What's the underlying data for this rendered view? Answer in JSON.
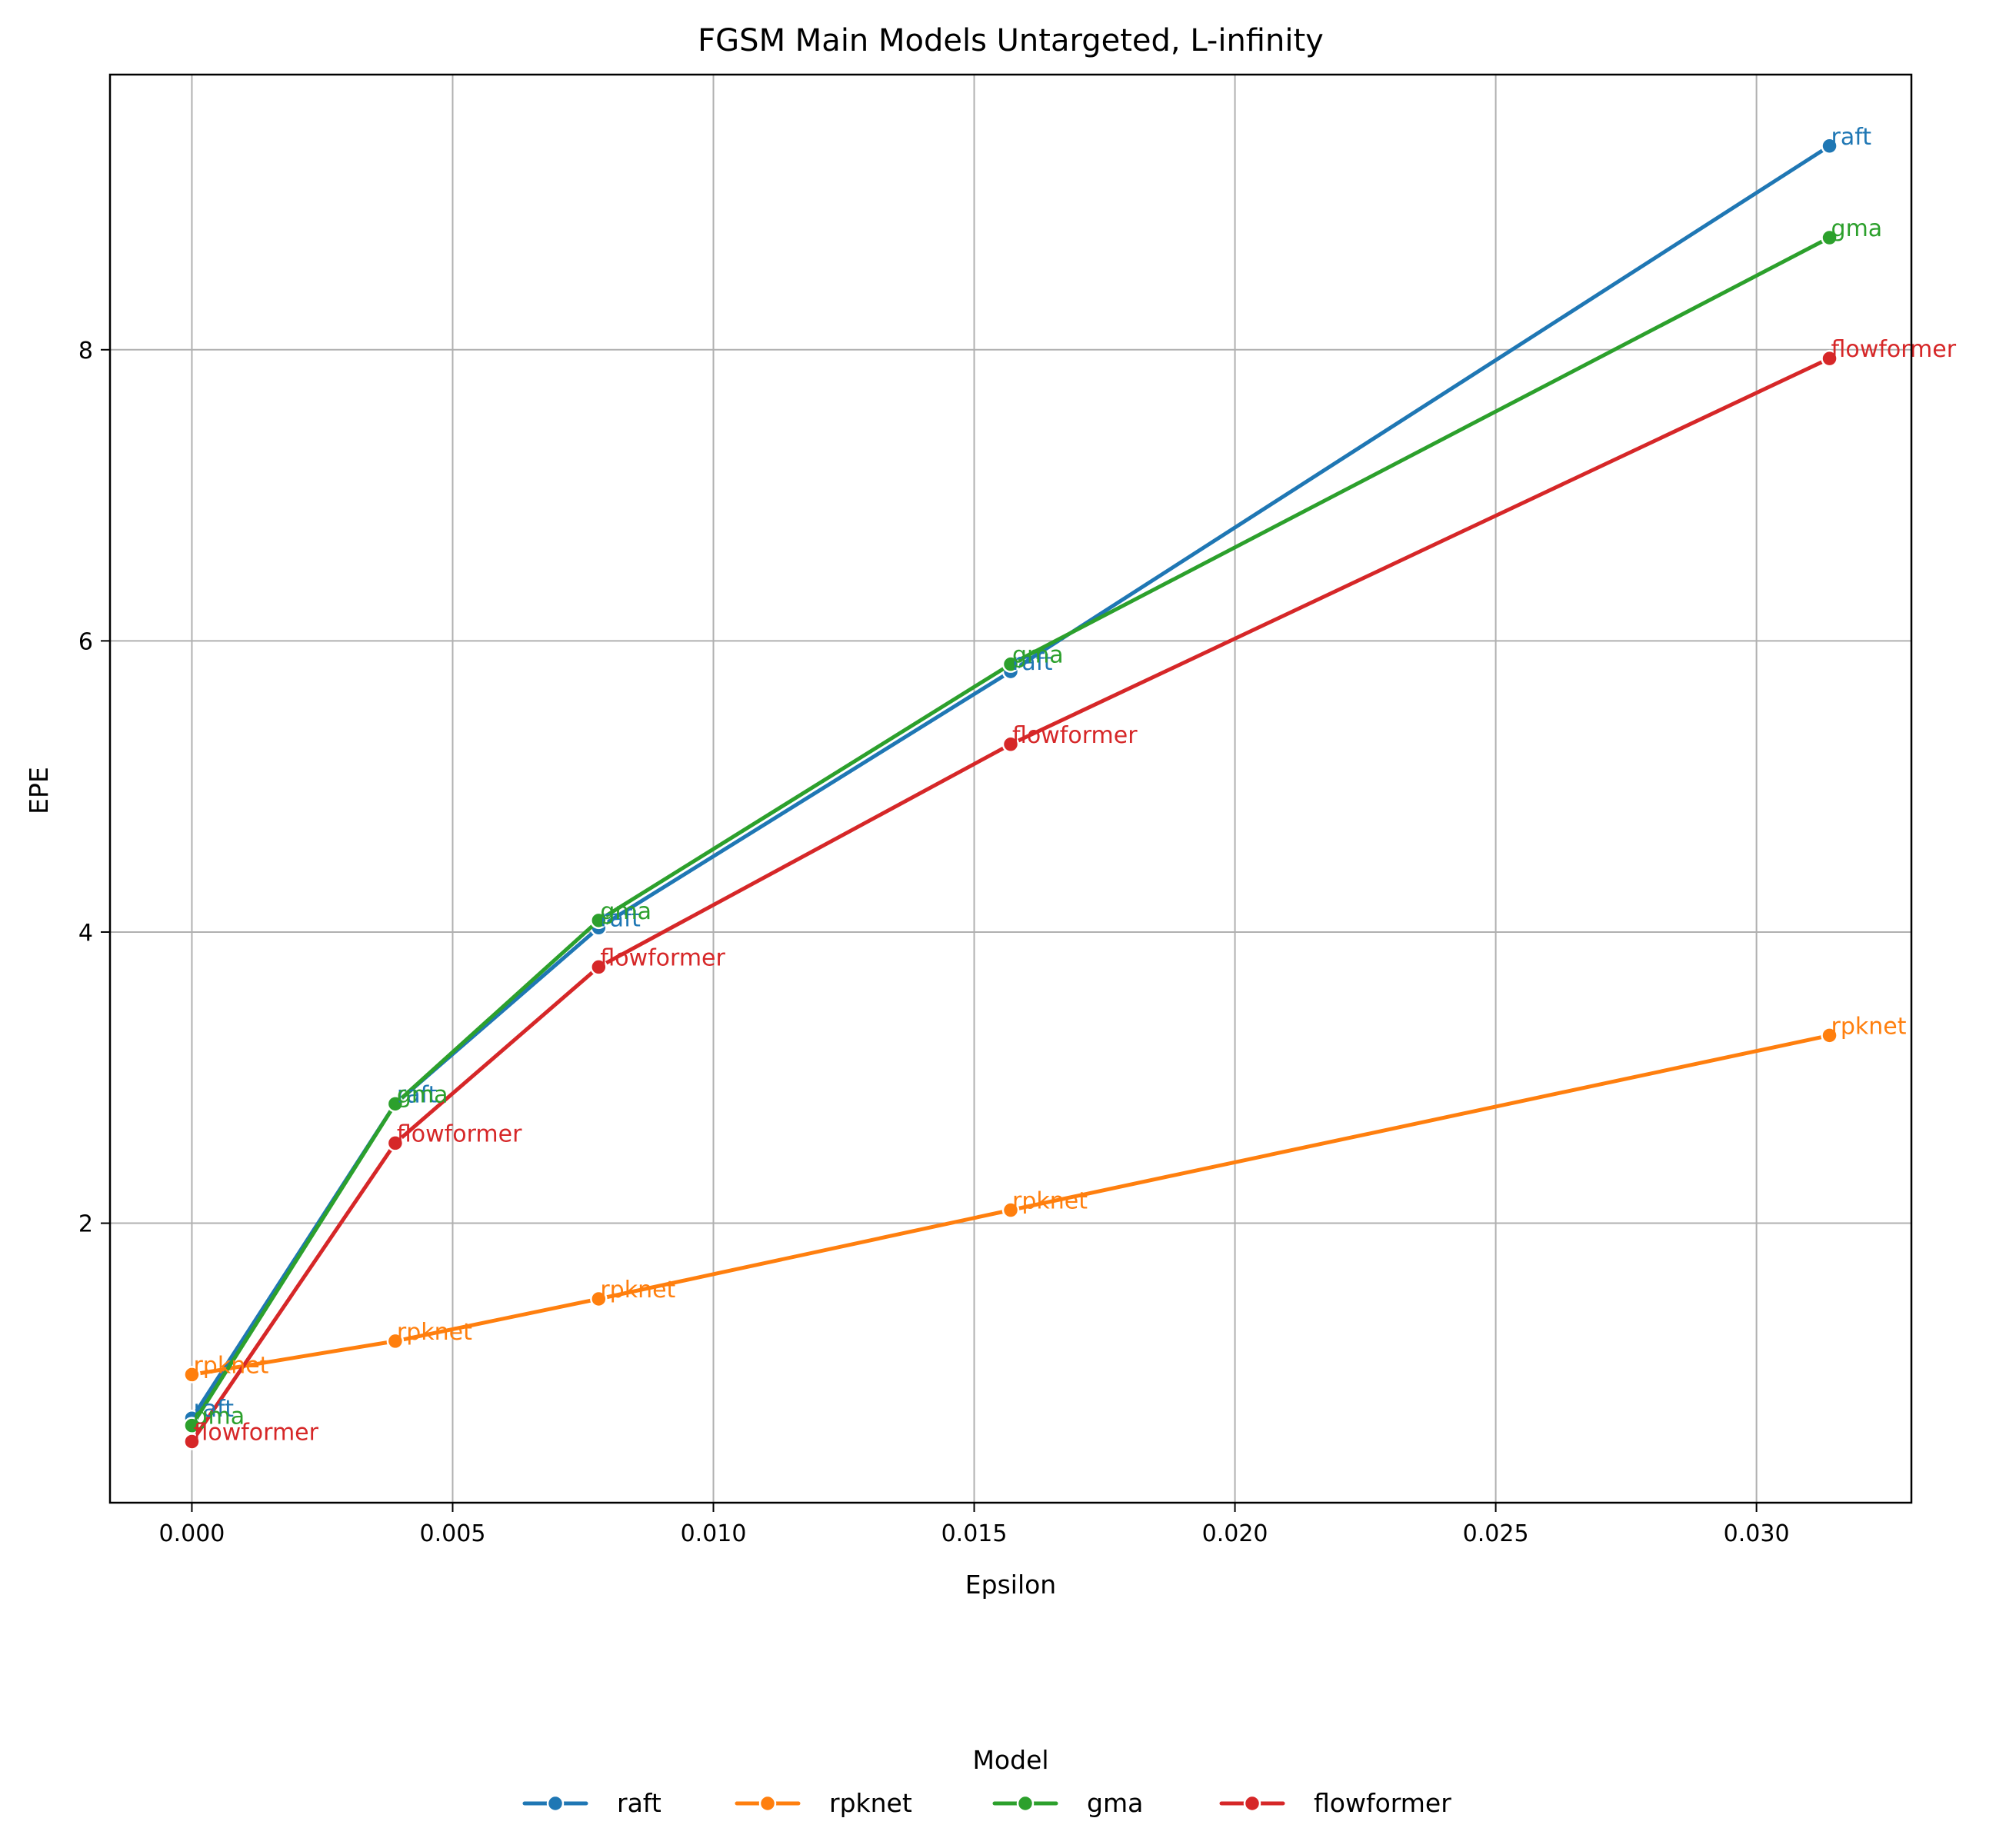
{
  "chart_data": {
    "type": "line",
    "title": "FGSM Main Models Untargeted, L-infinity",
    "xlabel": "Epsilon",
    "ylabel": "EPE",
    "xlim": [
      -0.00157,
      0.03297
    ],
    "ylim": [
      0.08,
      9.89
    ],
    "x": [
      0.0,
      0.0039,
      0.0078,
      0.0157,
      0.0314
    ],
    "xticks": [
      {
        "value": 0.0,
        "label": "0.000"
      },
      {
        "value": 0.005,
        "label": "0.005"
      },
      {
        "value": 0.01,
        "label": "0.010"
      },
      {
        "value": 0.015,
        "label": "0.015"
      },
      {
        "value": 0.02,
        "label": "0.020"
      },
      {
        "value": 0.025,
        "label": "0.025"
      },
      {
        "value": 0.03,
        "label": "0.030"
      }
    ],
    "yticks": [
      {
        "value": 2,
        "label": "2"
      },
      {
        "value": 4,
        "label": "4"
      },
      {
        "value": 6,
        "label": "6"
      },
      {
        "value": 8,
        "label": "8"
      }
    ],
    "grid": true,
    "marker": "circle",
    "series": [
      {
        "name": "raft",
        "color": "#1f77b4",
        "values": [
          0.66,
          2.82,
          4.03,
          5.79,
          9.4
        ]
      },
      {
        "name": "rpknet",
        "color": "#ff7f0e",
        "values": [
          0.96,
          1.19,
          1.48,
          2.09,
          3.29
        ]
      },
      {
        "name": "gma",
        "color": "#2ca02c",
        "values": [
          0.61,
          2.82,
          4.08,
          5.84,
          8.77
        ]
      },
      {
        "name": "flowformer",
        "color": "#d62728",
        "values": [
          0.5,
          2.55,
          3.76,
          5.29,
          7.94
        ]
      }
    ],
    "legend": {
      "title": "Model",
      "placement": "bottom-center"
    }
  }
}
